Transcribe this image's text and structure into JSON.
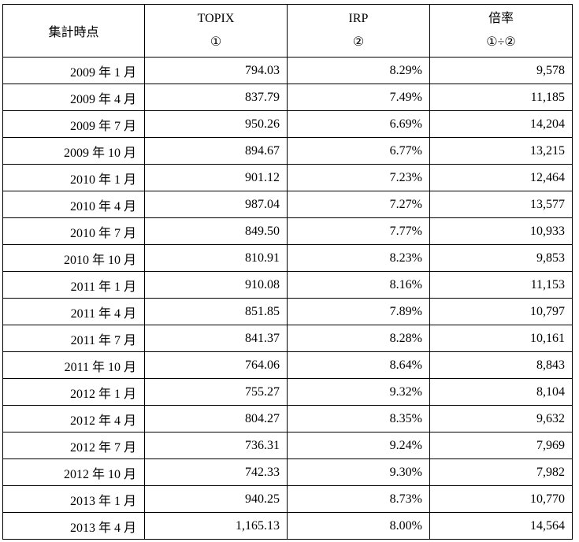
{
  "table": {
    "headers": [
      {
        "label": "集計時点",
        "sub": ""
      },
      {
        "label": "TOPIX",
        "sub": "①"
      },
      {
        "label": "IRP",
        "sub": "②"
      },
      {
        "label": "倍率",
        "sub": "①÷②"
      }
    ],
    "rows": [
      [
        "2009 年 1 月",
        "794.03",
        "8.29%",
        "9,578"
      ],
      [
        "2009 年 4 月",
        "837.79",
        "7.49%",
        "11,185"
      ],
      [
        "2009 年 7 月",
        "950.26",
        "6.69%",
        "14,204"
      ],
      [
        "2009 年 10 月",
        "894.67",
        "6.77%",
        "13,215"
      ],
      [
        "2010 年 1 月",
        "901.12",
        "7.23%",
        "12,464"
      ],
      [
        "2010 年 4 月",
        "987.04",
        "7.27%",
        "13,577"
      ],
      [
        "2010 年 7 月",
        "849.50",
        "7.77%",
        "10,933"
      ],
      [
        "2010 年 10 月",
        "810.91",
        "8.23%",
        "9,853"
      ],
      [
        "2011 年 1 月",
        "910.08",
        "8.16%",
        "11,153"
      ],
      [
        "2011 年 4 月",
        "851.85",
        "7.89%",
        "10,797"
      ],
      [
        "2011 年 7 月",
        "841.37",
        "8.28%",
        "10,161"
      ],
      [
        "2011 年 10 月",
        "764.06",
        "8.64%",
        "8,843"
      ],
      [
        "2012 年 1 月",
        "755.27",
        "9.32%",
        "8,104"
      ],
      [
        "2012 年 4 月",
        "804.27",
        "8.35%",
        "9,632"
      ],
      [
        "2012 年 7 月",
        "736.31",
        "9.24%",
        "7,969"
      ],
      [
        "2012 年 10 月",
        "742.33",
        "9.30%",
        "7,982"
      ],
      [
        "2013 年 1 月",
        "940.25",
        "8.73%",
        "10,770"
      ],
      [
        "2013 年 4 月",
        "1,165.13",
        "8.00%",
        "14,564"
      ]
    ]
  }
}
